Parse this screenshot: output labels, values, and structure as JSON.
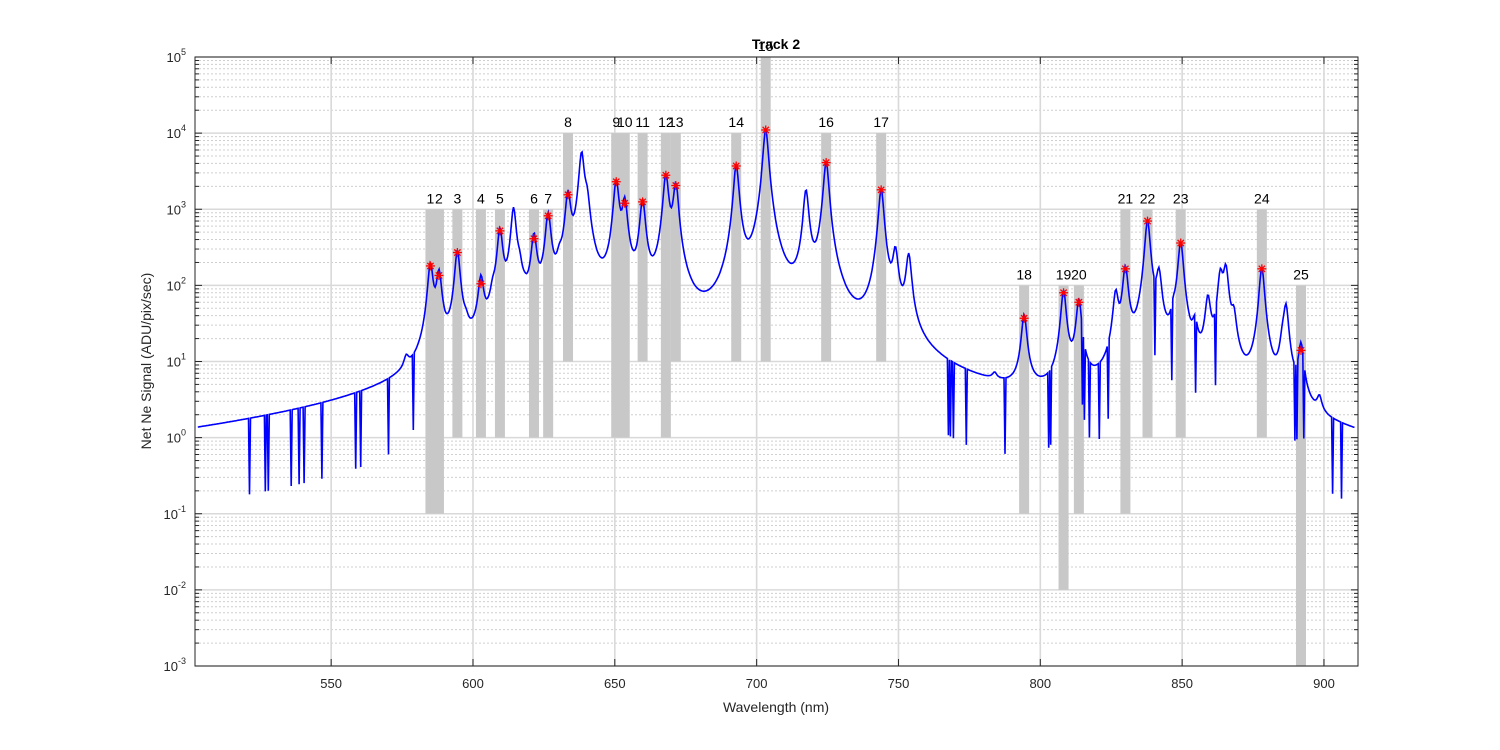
{
  "chart_data": {
    "type": "line",
    "title": "Track 2",
    "xlabel": "Wavelength (nm)",
    "ylabel": "Net Ne Signal (ADU/pix/sec)",
    "xlim": [
      502,
      912
    ],
    "ylim": [
      0.001,
      100000
    ],
    "yscale": "log",
    "grid": true,
    "minor_grid_y": true,
    "x_ticks": [
      550,
      600,
      650,
      700,
      750,
      800,
      850,
      900
    ],
    "y_ticks": [
      {
        "value": 0.001,
        "base": "10",
        "exp": "-3"
      },
      {
        "value": 0.01,
        "base": "10",
        "exp": "-2"
      },
      {
        "value": 0.1,
        "base": "10",
        "exp": "-1"
      },
      {
        "value": 1,
        "base": "10",
        "exp": "0"
      },
      {
        "value": 10,
        "base": "10",
        "exp": "1"
      },
      {
        "value": 100,
        "base": "10",
        "exp": "2"
      },
      {
        "value": 1000,
        "base": "10",
        "exp": "3"
      },
      {
        "value": 10000,
        "base": "10",
        "exp": "4"
      },
      {
        "value": 100000,
        "base": "10",
        "exp": "5"
      }
    ],
    "colors": {
      "line": "#0000ff",
      "marker": "#ff0000",
      "band": "#c8c8c8",
      "grid": "#d9d9d9"
    },
    "noise_floor": [
      [
        503,
        0.35
      ],
      [
        506,
        0.5
      ],
      [
        510,
        0.28
      ],
      [
        513,
        0.42
      ],
      [
        516,
        0.15
      ],
      [
        518,
        0.0035
      ],
      [
        520,
        0.3
      ],
      [
        523,
        0.12
      ],
      [
        526,
        0.55
      ],
      [
        530,
        0.22
      ],
      [
        534,
        0.4
      ],
      [
        538,
        0.3
      ],
      [
        541,
        0.1
      ],
      [
        545,
        0.45
      ],
      [
        548,
        0.25
      ],
      [
        551,
        0.12
      ],
      [
        554,
        0.55
      ],
      [
        557,
        0.3
      ],
      [
        560,
        0.08
      ],
      [
        563,
        0.45
      ],
      [
        566,
        0.5
      ],
      [
        569,
        0.28
      ],
      [
        572,
        0.6
      ],
      [
        575,
        0.9
      ],
      [
        577,
        3.5
      ],
      [
        579,
        1.5
      ],
      [
        581,
        0.8
      ],
      [
        583,
        1.2
      ]
    ],
    "peaks": [
      {
        "label": "1",
        "x": 585.0,
        "y": 180,
        "band_bottom": 0.1,
        "band_top": 1000
      },
      {
        "label": "2",
        "x": 588.0,
        "y": 135,
        "band_bottom": 0.1,
        "band_top": 1000
      },
      {
        "label": "3",
        "x": 594.5,
        "y": 270,
        "band_bottom": 1,
        "band_top": 1000
      },
      {
        "label": "4",
        "x": 602.8,
        "y": 105,
        "band_bottom": 1,
        "band_top": 1000
      },
      {
        "label": "5",
        "x": 609.5,
        "y": 520,
        "band_bottom": 1,
        "band_top": 1000
      },
      {
        "label": "6",
        "x": 621.5,
        "y": 410,
        "band_bottom": 1,
        "band_top": 1000
      },
      {
        "label": "7",
        "x": 626.5,
        "y": 820,
        "band_bottom": 1,
        "band_top": 1000
      },
      {
        "label": "8",
        "x": 633.5,
        "y": 1550,
        "band_bottom": 10,
        "band_top": 10000
      },
      {
        "label": "9",
        "x": 650.5,
        "y": 2300,
        "band_bottom": 1,
        "band_top": 10000
      },
      {
        "label": "10",
        "x": 653.5,
        "y": 1200,
        "band_bottom": 1,
        "band_top": 10000
      },
      {
        "label": "11",
        "x": 659.8,
        "y": 1250,
        "band_bottom": 10,
        "band_top": 10000
      },
      {
        "label": "12",
        "x": 668.0,
        "y": 2800,
        "band_bottom": 1,
        "band_top": 10000
      },
      {
        "label": "13",
        "x": 671.5,
        "y": 2050,
        "band_bottom": 10,
        "band_top": 10000
      },
      {
        "label": "14",
        "x": 692.8,
        "y": 3700,
        "band_bottom": 10,
        "band_top": 10000
      },
      {
        "label": "15",
        "x": 703.2,
        "y": 11000,
        "band_bottom": 10,
        "band_top": 100000
      },
      {
        "label": "16",
        "x": 724.5,
        "y": 4100,
        "band_bottom": 10,
        "band_top": 10000
      },
      {
        "label": "17",
        "x": 743.9,
        "y": 1800,
        "band_bottom": 10,
        "band_top": 10000
      },
      {
        "label": "18",
        "x": 794.3,
        "y": 37,
        "band_bottom": 0.1,
        "band_top": 100
      },
      {
        "label": "19",
        "x": 808.2,
        "y": 80,
        "band_bottom": 0.01,
        "band_top": 100
      },
      {
        "label": "20",
        "x": 813.6,
        "y": 60,
        "band_bottom": 0.1,
        "band_top": 100
      },
      {
        "label": "21",
        "x": 830.0,
        "y": 165,
        "band_bottom": 0.1,
        "band_top": 1000
      },
      {
        "label": "22",
        "x": 837.8,
        "y": 700,
        "band_bottom": 1,
        "band_top": 1000
      },
      {
        "label": "23",
        "x": 849.5,
        "y": 360,
        "band_bottom": 1,
        "band_top": 1000
      },
      {
        "label": "24",
        "x": 878.1,
        "y": 165,
        "band_bottom": 1,
        "band_top": 1000
      },
      {
        "label": "25",
        "x": 891.9,
        "y": 14,
        "band_bottom": 0.001,
        "band_top": 100
      }
    ],
    "unmarked_peaks": [
      {
        "x": 576.5,
        "y": 3.4
      },
      {
        "x": 597.5,
        "y": 8
      },
      {
        "x": 607.0,
        "y": 35
      },
      {
        "x": 614.3,
        "y": 1000
      },
      {
        "x": 616.4,
        "y": 90
      },
      {
        "x": 618.2,
        "y": 12
      },
      {
        "x": 630.5,
        "y": 90
      },
      {
        "x": 638.3,
        "y": 5500
      },
      {
        "x": 640.2,
        "y": 1000
      },
      {
        "x": 717.4,
        "y": 1700
      },
      {
        "x": 748.9,
        "y": 250
      },
      {
        "x": 753.6,
        "y": 230
      },
      {
        "x": 783.9,
        "y": 1.2
      },
      {
        "x": 826.6,
        "y": 70
      },
      {
        "x": 841.8,
        "y": 130
      },
      {
        "x": 847.0,
        "y": 20
      },
      {
        "x": 854.5,
        "y": 20
      },
      {
        "x": 859.1,
        "y": 60
      },
      {
        "x": 863.5,
        "y": 130
      },
      {
        "x": 865.4,
        "y": 160
      },
      {
        "x": 868.2,
        "y": 30
      },
      {
        "x": 885.4,
        "y": 10
      },
      {
        "x": 886.6,
        "y": 50
      },
      {
        "x": 898.4,
        "y": 1.3
      }
    ],
    "regions": [
      {
        "x0": 583,
        "x1": 757,
        "floor": 0.8
      },
      {
        "x0": 683,
        "x1": 700,
        "floor": 2.2
      },
      {
        "x0": 705,
        "x1": 722,
        "floor": 2.5
      },
      {
        "x0": 726,
        "x1": 742,
        "floor": 2.0
      }
    ]
  }
}
